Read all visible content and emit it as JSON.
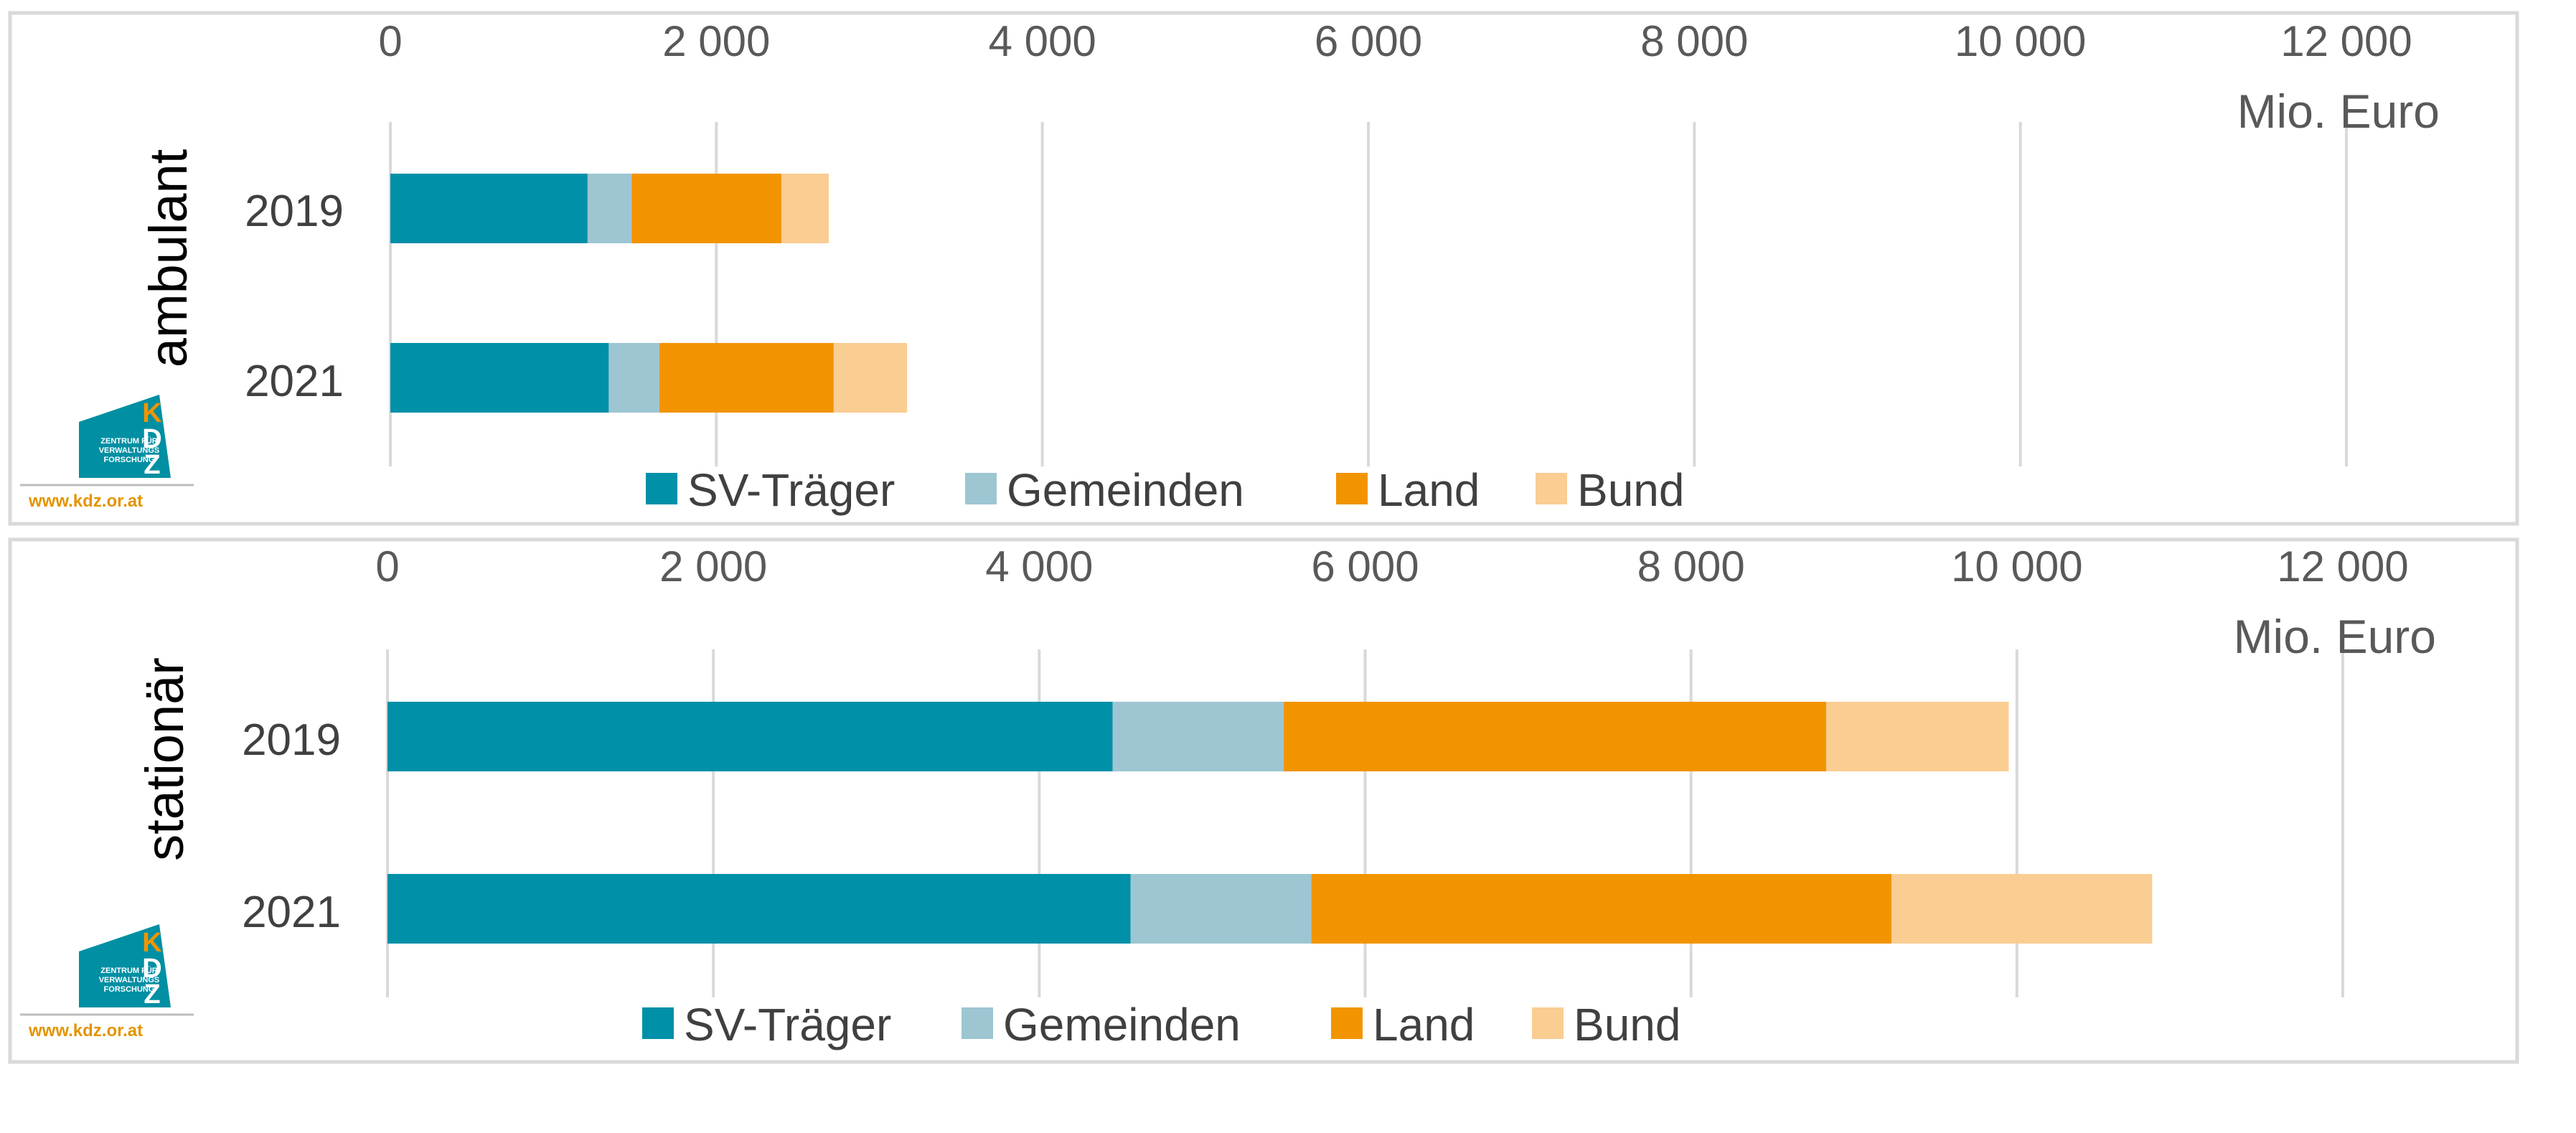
{
  "chart_data": [
    {
      "type": "bar",
      "orientation": "horizontal",
      "stacked": true,
      "group_label": "ambulant",
      "unit_label": "Mio. Euro",
      "categories": [
        "2019",
        "2021"
      ],
      "series": [
        {
          "name": "SV-Träger",
          "color": "#0090A8",
          "values": [
            1210,
            1340
          ]
        },
        {
          "name": "Gemeinden",
          "color": "#9DC6D2",
          "values": [
            270,
            310
          ]
        },
        {
          "name": "Land",
          "color": "#F29400",
          "values": [
            920,
            1070
          ]
        },
        {
          "name": "Bund",
          "color": "#FACD92",
          "values": [
            290,
            450
          ]
        }
      ],
      "x_ticks": [
        "0",
        "2 000",
        "4 000",
        "6 000",
        "8 000",
        "10 000",
        "12 000"
      ],
      "xlim": [
        0,
        12000
      ],
      "grid": true,
      "legend_position": "bottom",
      "logo": {
        "url_text": "www.kdz.or.at",
        "initials": "KDZ",
        "lines": [
          "ZENTRUM FÜR",
          "VERWALTUNGS",
          "FORSCHUNG"
        ]
      }
    },
    {
      "type": "bar",
      "orientation": "horizontal",
      "stacked": true,
      "group_label": "stationär",
      "unit_label": "Mio. Euro",
      "categories": [
        "2019",
        "2021"
      ],
      "series": [
        {
          "name": "SV-Träger",
          "color": "#0090A8",
          "values": [
            4450,
            4560
          ]
        },
        {
          "name": "Gemeinden",
          "color": "#9DC6D2",
          "values": [
            1050,
            1110
          ]
        },
        {
          "name": "Land",
          "color": "#F29400",
          "values": [
            3330,
            3560
          ]
        },
        {
          "name": "Bund",
          "color": "#FACD92",
          "values": [
            1120,
            1600
          ]
        }
      ],
      "x_ticks": [
        "0",
        "2 000",
        "4 000",
        "6 000",
        "8 000",
        "10 000",
        "12 000"
      ],
      "xlim": [
        0,
        12000
      ],
      "grid": true,
      "legend_position": "bottom",
      "logo": {
        "url_text": "www.kdz.or.at",
        "initials": "KDZ",
        "lines": [
          "ZENTRUM FÜR",
          "VERWALTUNGS",
          "FORSCHUNG"
        ]
      }
    }
  ]
}
